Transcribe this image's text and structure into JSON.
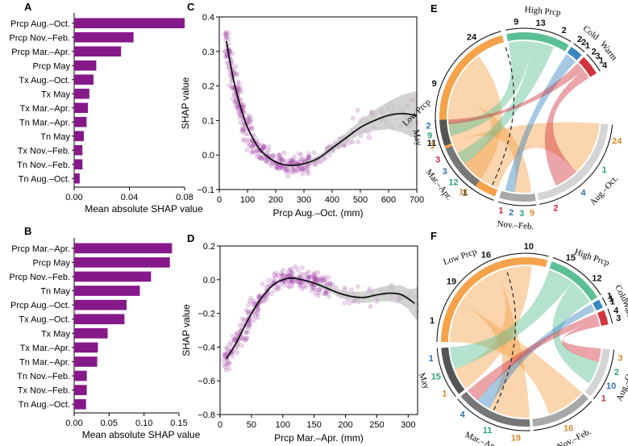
{
  "colors": {
    "bar": "#86198a",
    "scatter": "#a24aa8",
    "curve": "#111111",
    "band": "#c4c4c4",
    "low_prcp": "#f5a24b",
    "high_prcp": "#5bbf94",
    "cold": "#3a86c2",
    "warm": "#d2353f",
    "may": "#555555",
    "mar_apr": "#777777",
    "nov_feb": "#a8a8a8",
    "aug_oct": "#d4d4d4",
    "num_orange": "#d98a2b",
    "num_green": "#2aa37a",
    "num_blue": "#2f6fb0",
    "num_red": "#c2303a"
  },
  "chart_data": [
    {
      "panel": "A",
      "type": "bar",
      "orientation": "horizontal",
      "categories": [
        "Prcp Aug.–Oct.",
        "Prcp Nov.–Feb.",
        "Prcp Mar.–Apr.",
        "Prcp May",
        "Tx Aug.–Oct.",
        "Tx May",
        "Tx Mar.–Apr.",
        "Tn Mar.–Apr.",
        "Tn May",
        "Tx Nov.–Feb.",
        "Tn Nov.–Feb.",
        "Tn Aug.–Oct."
      ],
      "values": [
        0.08,
        0.043,
        0.034,
        0.016,
        0.014,
        0.011,
        0.01,
        0.009,
        0.007,
        0.006,
        0.006,
        0.004
      ],
      "xlabel": "Mean absolute SHAP value",
      "xlim": [
        0,
        0.08
      ],
      "xticks": [
        0.0,
        0.04,
        0.08
      ],
      "xtick_labels": [
        "0.00",
        "0.04",
        "0.08"
      ]
    },
    {
      "panel": "B",
      "type": "bar",
      "orientation": "horizontal",
      "categories": [
        "Prcp Mar.–Apr.",
        "Prcp May",
        "Prcp Nov.–Feb.",
        "Tn May",
        "Prcp Aug.–Oct.",
        "Tx Aug.–Oct.",
        "Tx May",
        "Tx Mar.–Apr.",
        "Tn Mar.–Apr.",
        "Tn Nov.–Feb.",
        "Tx Nov.–Feb.",
        "Tn Aug.–Oct."
      ],
      "values": [
        0.14,
        0.137,
        0.11,
        0.094,
        0.075,
        0.072,
        0.048,
        0.034,
        0.033,
        0.018,
        0.018,
        0.017
      ],
      "xlabel": "Mean absolute SHAP value",
      "xlim": [
        0,
        0.15
      ],
      "xticks": [
        0.0,
        0.05,
        0.1,
        0.15
      ],
      "xtick_labels": [
        "0.00",
        "0.05",
        "0.10",
        "0.15"
      ]
    },
    {
      "panel": "C",
      "type": "scatter",
      "xlabel": "Prcp Aug.–Oct. (mm)",
      "ylabel": "SHAP value",
      "xlim": [
        0,
        700
      ],
      "ylim": [
        -0.1,
        0.4
      ],
      "xticks": [
        0,
        100,
        200,
        300,
        400,
        500,
        600,
        700
      ],
      "yticks": [
        -0.1,
        0.0,
        0.1,
        0.2,
        0.3,
        0.4
      ],
      "ytick_labels": [
        "−0.1",
        "0.0",
        "0.1",
        "0.2",
        "0.3",
        "0.4"
      ],
      "fit_curve": {
        "x": [
          25,
          50,
          75,
          100,
          125,
          150,
          200,
          250,
          300,
          350,
          400,
          450,
          500,
          550,
          600,
          650,
          700
        ],
        "y": [
          0.33,
          0.22,
          0.14,
          0.08,
          0.04,
          0.01,
          -0.02,
          -0.03,
          -0.025,
          -0.01,
          0.02,
          0.05,
          0.08,
          0.1,
          0.115,
          0.12,
          0.115
        ]
      },
      "band": {
        "x": [
          300,
          400,
          500,
          600,
          700
        ],
        "half_width": [
          0.005,
          0.01,
          0.02,
          0.04,
          0.07
        ]
      },
      "point_clusters": [
        {
          "x_range": [
            20,
            120
          ],
          "y_center": "curve",
          "spread": 0.06,
          "count": 160
        },
        {
          "x_range": [
            120,
            320
          ],
          "y_center": "curve",
          "spread": 0.03,
          "count": 170
        },
        {
          "x_range": [
            320,
            450
          ],
          "y_center": "curve",
          "spread": 0.02,
          "count": 40
        },
        {
          "x_range": [
            450,
            700
          ],
          "y_center": "curve",
          "spread": 0.05,
          "count": 45
        }
      ]
    },
    {
      "panel": "D",
      "type": "scatter",
      "xlabel": "Prcp Mar.–Apr. (mm)",
      "ylabel": "SHAP value",
      "xlim": [
        0,
        315
      ],
      "ylim": [
        -0.8,
        0.2
      ],
      "xticks": [
        0,
        50,
        100,
        150,
        200,
        250,
        300
      ],
      "yticks": [
        -0.8,
        -0.6,
        -0.4,
        -0.2,
        0.0,
        0.2
      ],
      "ytick_labels": [
        "−0.8",
        "−0.6",
        "−0.4",
        "−0.2",
        "0.0",
        "0.2"
      ],
      "fit_curve": {
        "x": [
          10,
          25,
          40,
          55,
          70,
          85,
          100,
          115,
          130,
          150,
          170,
          190,
          210,
          230,
          250,
          270,
          290,
          310
        ],
        "y": [
          -0.47,
          -0.38,
          -0.27,
          -0.17,
          -0.09,
          -0.03,
          0.0,
          0.01,
          0.0,
          -0.02,
          -0.05,
          -0.08,
          -0.1,
          -0.105,
          -0.09,
          -0.08,
          -0.09,
          -0.14
        ]
      },
      "band": {
        "x": [
          150,
          200,
          250,
          300,
          315
        ],
        "half_width": [
          0.01,
          0.025,
          0.04,
          0.06,
          0.1
        ]
      },
      "point_clusters": [
        {
          "x_range": [
            5,
            60
          ],
          "y_center": "curve",
          "spread": 0.09,
          "count": 110
        },
        {
          "x_range": [
            60,
            180
          ],
          "y_center": "curve",
          "spread": 0.07,
          "count": 200
        },
        {
          "x_range": [
            180,
            315
          ],
          "y_center": "curve",
          "spread": 0.06,
          "count": 50
        }
      ]
    },
    {
      "panel": "E",
      "type": "chord",
      "segments": [
        {
          "name": "Low Prcp",
          "label": "Low Prcp",
          "ticks": [
            "1",
            "11",
            "9",
            "24"
          ],
          "start": 200,
          "end": 345
        },
        {
          "name": "High Prcp",
          "label": "High Prcp",
          "ticks": [
            "9",
            "13",
            "2"
          ],
          "start": 348,
          "end": 392
        },
        {
          "name": "Cold",
          "label": "Cold",
          "ticks": [
            "2",
            "2",
            "1"
          ],
          "start": 394,
          "end": 403
        },
        {
          "name": "Warm",
          "label": "Warm",
          "ticks": [
            "2",
            "3",
            "1",
            "4"
          ],
          "start": 405,
          "end": 419
        },
        {
          "name": "Aug.–Oct.",
          "label": "Aug.–Oct.",
          "ticks": [
            "24",
            "1",
            "4",
            "2"
          ],
          "start": 95,
          "end": 170
        },
        {
          "name": "Nov.–Feb.",
          "label": "Nov.–Feb.",
          "ticks": [
            "9",
            "3",
            "2",
            "1"
          ],
          "start": 172,
          "end": 197
        },
        {
          "name": "Mar.–Apr.",
          "label": "Mar.–Apr.",
          "ticks": [
            "11",
            "12",
            "3",
            "3"
          ],
          "start": 215,
          "end": 248
        },
        {
          "name": "May",
          "label": "May",
          "ticks": [
            "1",
            "9",
            "2"
          ],
          "start": 250,
          "end": 268
        }
      ]
    },
    {
      "panel": "F",
      "type": "chord",
      "segments": [
        {
          "name": "Low Prcp",
          "label": "Low Prcp",
          "ticks": [
            "1",
            "19",
            "16",
            "10"
          ],
          "start": 270,
          "end": 375
        },
        {
          "name": "High Prcp",
          "label": "High Prcp",
          "ticks": [
            "15",
            "12"
          ],
          "start": 378,
          "end": 418
        },
        {
          "name": "Cold",
          "label": "Cold",
          "ticks": [
            "1",
            "1",
            "1"
          ],
          "start": 420,
          "end": 426
        },
        {
          "name": "Warm",
          "label": "Warm",
          "ticks": [
            "4",
            "3"
          ],
          "start": 428,
          "end": 438
        },
        {
          "name": "Aug.–Oct.",
          "label": "Aug.–Oct.",
          "ticks": [
            "3",
            "2",
            "10",
            "1"
          ],
          "start": 95,
          "end": 130
        },
        {
          "name": "Nov.–Feb.",
          "label": "Nov.–Feb.",
          "ticks": [
            "16"
          ],
          "start": 132,
          "end": 175
        },
        {
          "name": "Mar.–Apr.",
          "label": "Mar.–Apr.",
          "ticks": [
            "19",
            "11",
            "4"
          ],
          "start": 177,
          "end": 230
        },
        {
          "name": "May",
          "label": "May",
          "ticks": [
            "1",
            "15",
            "1"
          ],
          "start": 232,
          "end": 266
        }
      ]
    }
  ],
  "panels": {
    "A": "A",
    "B": "B",
    "C": "C",
    "D": "D",
    "E": "E",
    "F": "F"
  }
}
